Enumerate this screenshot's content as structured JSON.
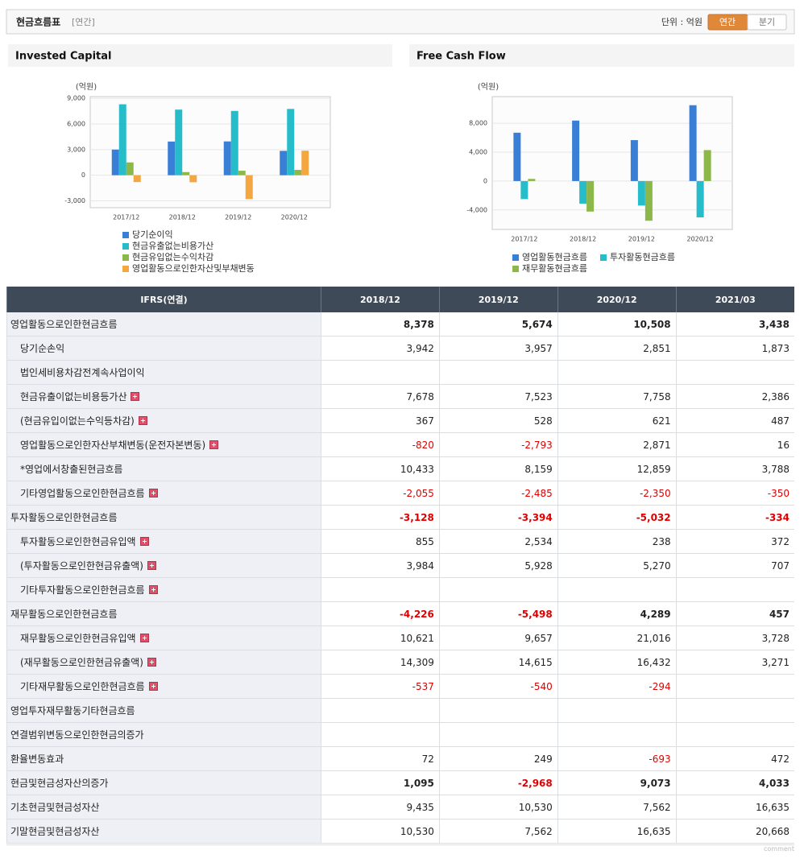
{
  "header": {
    "title": "현금흐름표",
    "period": "[연간]",
    "unit": "단위 : 억원",
    "buttons": [
      "연간",
      "분기"
    ]
  },
  "chart_data": [
    {
      "type": "bar",
      "title": "Invested Capital",
      "unit": "(억원)",
      "categories": [
        "2017/12",
        "2018/12",
        "2019/12",
        "2020/12"
      ],
      "series": [
        {
          "name": "당기순이익",
          "color": "#3a7fd6",
          "values": [
            3000,
            3942,
            3957,
            2851
          ]
        },
        {
          "name": "현금유출없는비용가산",
          "color": "#27bcc9",
          "values": [
            8300,
            7678,
            7523,
            7758
          ]
        },
        {
          "name": "현금유입없는수익차감",
          "color": "#8cb84a",
          "values": [
            1500,
            367,
            528,
            621
          ]
        },
        {
          "name": "영업활동으로인한자산및부채변동",
          "color": "#f4a640",
          "values": [
            -800,
            -820,
            -2793,
            2871
          ]
        }
      ],
      "ylim": [
        -3800,
        9200
      ],
      "yticks": [
        {
          "value": 9000,
          "label": "9,000"
        },
        {
          "value": 6000,
          "label": "6,000"
        },
        {
          "value": 3000,
          "label": "3,000"
        },
        0,
        {
          "value": -3000,
          "label": "-3,000"
        }
      ],
      "grid": true
    },
    {
      "type": "bar",
      "title": "Free Cash Flow",
      "unit": "(억원)",
      "categories": [
        "2017/12",
        "2018/12",
        "2019/12",
        "2020/12"
      ],
      "series": [
        {
          "name": "영업활동현금흐름",
          "color": "#3a7fd6",
          "values": [
            6700,
            8378,
            5674,
            10508
          ]
        },
        {
          "name": "투자활동현금흐름",
          "color": "#27bcc9",
          "values": [
            -2500,
            -3128,
            -3394,
            -5032
          ]
        },
        {
          "name": "재무활동현금흐름",
          "color": "#8cb84a",
          "values": [
            300,
            -4226,
            -5498,
            4289
          ]
        }
      ],
      "ylim": [
        -6700,
        11700
      ],
      "yticks": [
        {
          "value": 8000,
          "label": "8,000"
        },
        {
          "value": 4000,
          "label": "4,000"
        },
        0,
        {
          "value": -4000,
          "label": "-4,000"
        }
      ],
      "grid": true
    }
  ],
  "table": {
    "columns": [
      "IFRS(연결)",
      "2018/12",
      "2019/12",
      "2020/12",
      "2021/03"
    ],
    "rows": [
      [
        "영업활동으로인한현금흐름",
        "8,378",
        "5,674",
        "10,508",
        "3,438"
      ],
      [
        "당기순손익",
        "3,942",
        "3,957",
        "2,851",
        "1,873"
      ],
      [
        "법인세비용차감전계속사업이익",
        null,
        null,
        null,
        null
      ],
      [
        "현금유출이없는비용등가산",
        "7,678",
        "7,523",
        "7,758",
        "2,386"
      ],
      [
        "(현금유입이없는수익등차감)",
        "367",
        "528",
        "621",
        "487"
      ],
      [
        "영업활동으로인한자산부채변동(운전자본변동)",
        "-820",
        "-2,793",
        "2,871",
        "16"
      ],
      [
        "*영업에서창출된현금흐름",
        "10,433",
        "8,159",
        "12,859",
        "3,788"
      ],
      [
        "기타영업활동으로인한현금흐름",
        "-2,055",
        "-2,485",
        "-2,350",
        "-350"
      ],
      [
        "투자활동으로인한현금흐름",
        "-3,128",
        "-3,394",
        "-5,032",
        "-334"
      ],
      [
        "투자활동으로인한현금유입액",
        "855",
        "2,534",
        "238",
        "372"
      ],
      [
        "(투자활동으로인한현금유출액)",
        "3,984",
        "5,928",
        "5,270",
        "707"
      ],
      [
        "기타투자활동으로인한현금흐름",
        null,
        null,
        null,
        null
      ],
      [
        "재무활동으로인한현금흐름",
        "-4,226",
        "-5,498",
        "4,289",
        "457"
      ],
      [
        "재무활동으로인한현금유입액",
        "10,621",
        "9,657",
        "21,016",
        "3,728"
      ],
      [
        "(재무활동으로인한현금유출액)",
        "14,309",
        "14,615",
        "16,432",
        "3,271"
      ],
      [
        "기타재무활동으로인한현금흐름",
        "-537",
        "-540",
        "-294",
        null
      ],
      [
        "영업투자재무활동기타현금흐름",
        null,
        null,
        null,
        null
      ],
      [
        "연결범위변동으로인한현금의증가",
        null,
        null,
        null,
        null
      ],
      [
        "환율변동효과",
        "72",
        "249",
        "-693",
        "472"
      ],
      [
        "현금및현금성자산의증가",
        "1,095",
        "-2,968",
        "9,073",
        "4,033"
      ],
      [
        "기초현금및현금성자산",
        "9,435",
        "10,530",
        "7,562",
        "16,635"
      ],
      [
        "기말현금및현금성자산",
        "10,530",
        "7,562",
        "16,635",
        "20,668"
      ]
    ]
  },
  "footer": "comment"
}
